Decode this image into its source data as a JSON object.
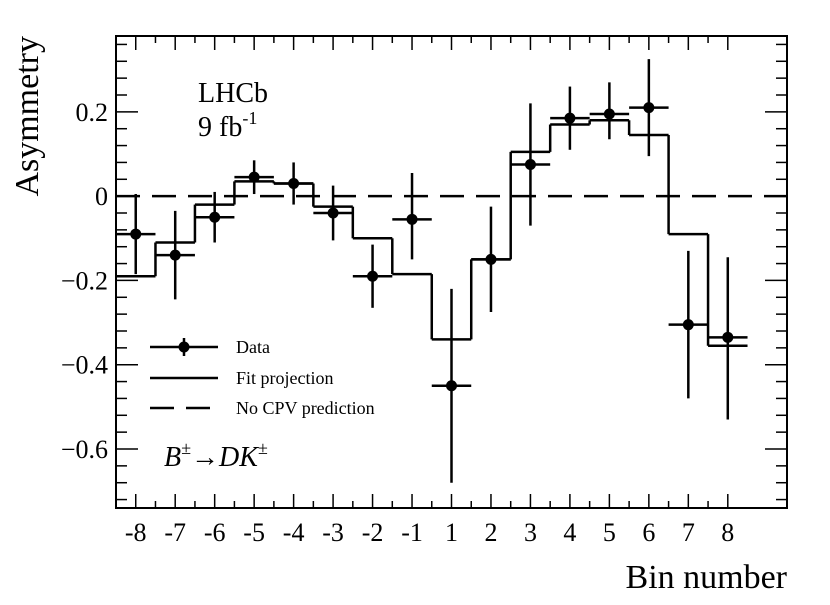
{
  "chart_data": {
    "type": "scatter",
    "xlabel": "Bin number",
    "ylabel": "Asymmetry",
    "xlim": [
      -8.5,
      8.5
    ],
    "ylim": [
      -0.74,
      0.38
    ],
    "x_ticks": [
      "-8",
      "-7",
      "-6",
      "-5",
      "-4",
      "-3",
      "-2",
      "-1",
      "1",
      "2",
      "3",
      "4",
      "5",
      "6",
      "7",
      "8"
    ],
    "y_ticks": [
      {
        "value": 0.2,
        "label": "0.2"
      },
      {
        "value": 0.0,
        "label": "0"
      },
      {
        "value": -0.2,
        "label": "−0.2"
      },
      {
        "value": -0.4,
        "label": "−0.4"
      },
      {
        "value": -0.6,
        "label": "−0.6"
      }
    ],
    "annotations": {
      "experiment": "LHCb",
      "lumi_base": "9 fb",
      "lumi_exp": "-1",
      "decay": {
        "b": "B",
        "pm1": "±",
        "arrow": "→",
        "dk": "DK",
        "pm2": "±"
      }
    },
    "legend": {
      "position": "bottom-left",
      "entries": [
        "Data",
        "Fit projection",
        "No CPV prediction"
      ]
    },
    "series": [
      {
        "name": "Data",
        "style": "points-with-errors",
        "y": [
          -0.09,
          -0.14,
          -0.05,
          0.045,
          0.03,
          -0.04,
          -0.19,
          -0.055,
          -0.45,
          -0.15,
          0.075,
          0.185,
          0.195,
          0.21,
          -0.305,
          -0.335
        ],
        "err_low": [
          0.095,
          0.105,
          0.06,
          0.04,
          0.05,
          0.065,
          0.075,
          0.095,
          0.23,
          0.125,
          0.145,
          0.075,
          0.06,
          0.115,
          0.175,
          0.195
        ],
        "err_high": [
          0.095,
          0.105,
          0.06,
          0.04,
          0.05,
          0.065,
          0.075,
          0.11,
          0.23,
          0.125,
          0.145,
          0.075,
          0.075,
          0.115,
          0.175,
          0.19
        ]
      },
      {
        "name": "Fit projection",
        "style": "step",
        "y": [
          -0.19,
          -0.11,
          -0.02,
          0.035,
          0.03,
          -0.025,
          -0.1,
          -0.185,
          -0.34,
          -0.15,
          0.105,
          0.17,
          0.18,
          0.145,
          -0.09,
          -0.355
        ]
      },
      {
        "name": "No CPV prediction",
        "style": "dashed-horizontal",
        "y": 0.0
      }
    ]
  }
}
